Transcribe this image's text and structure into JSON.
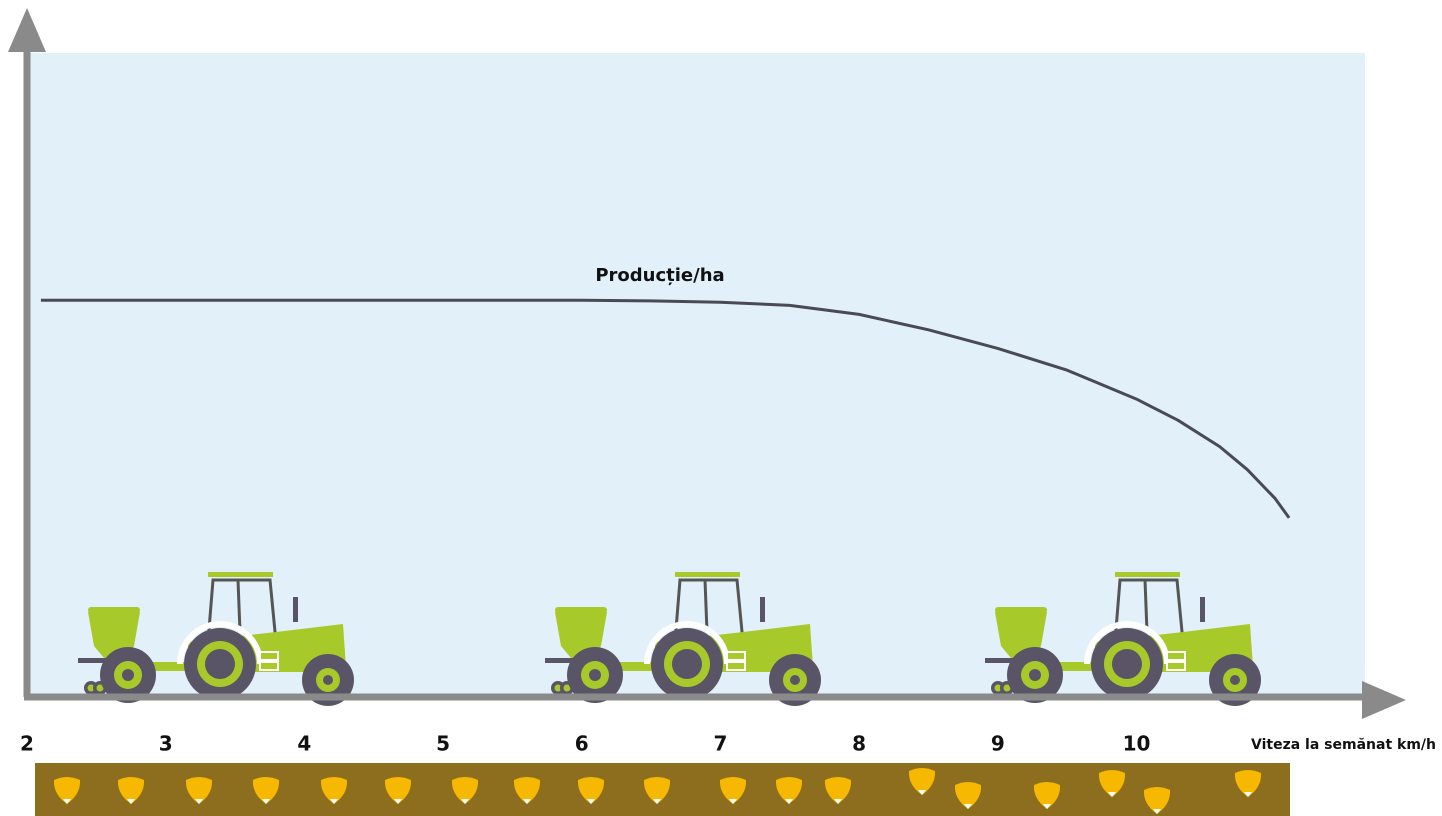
{
  "chart_data": {
    "type": "line",
    "x_label": "Viteza la semănat km/h",
    "xlim": [
      2,
      11.9
    ],
    "xticks": [
      2,
      3,
      4,
      5,
      6,
      7,
      8,
      9,
      10
    ],
    "ylim": [
      0,
      100
    ],
    "x": [
      2.1,
      3,
      4,
      5,
      6,
      6.5,
      7,
      7.5,
      8,
      8.5,
      9,
      9.5,
      10,
      10.3,
      10.6,
      10.8,
      11,
      11.1
    ],
    "series": [
      {
        "name": "Producție/ha",
        "color": "#4a4a55",
        "values": [
          61.8,
          61.8,
          61.8,
          61.8,
          61.8,
          61.7,
          61.5,
          61.0,
          59.6,
          57.2,
          54.3,
          50.9,
          46.4,
          43.1,
          39.0,
          35.4,
          30.9,
          27.9
        ]
      }
    ]
  }
}
